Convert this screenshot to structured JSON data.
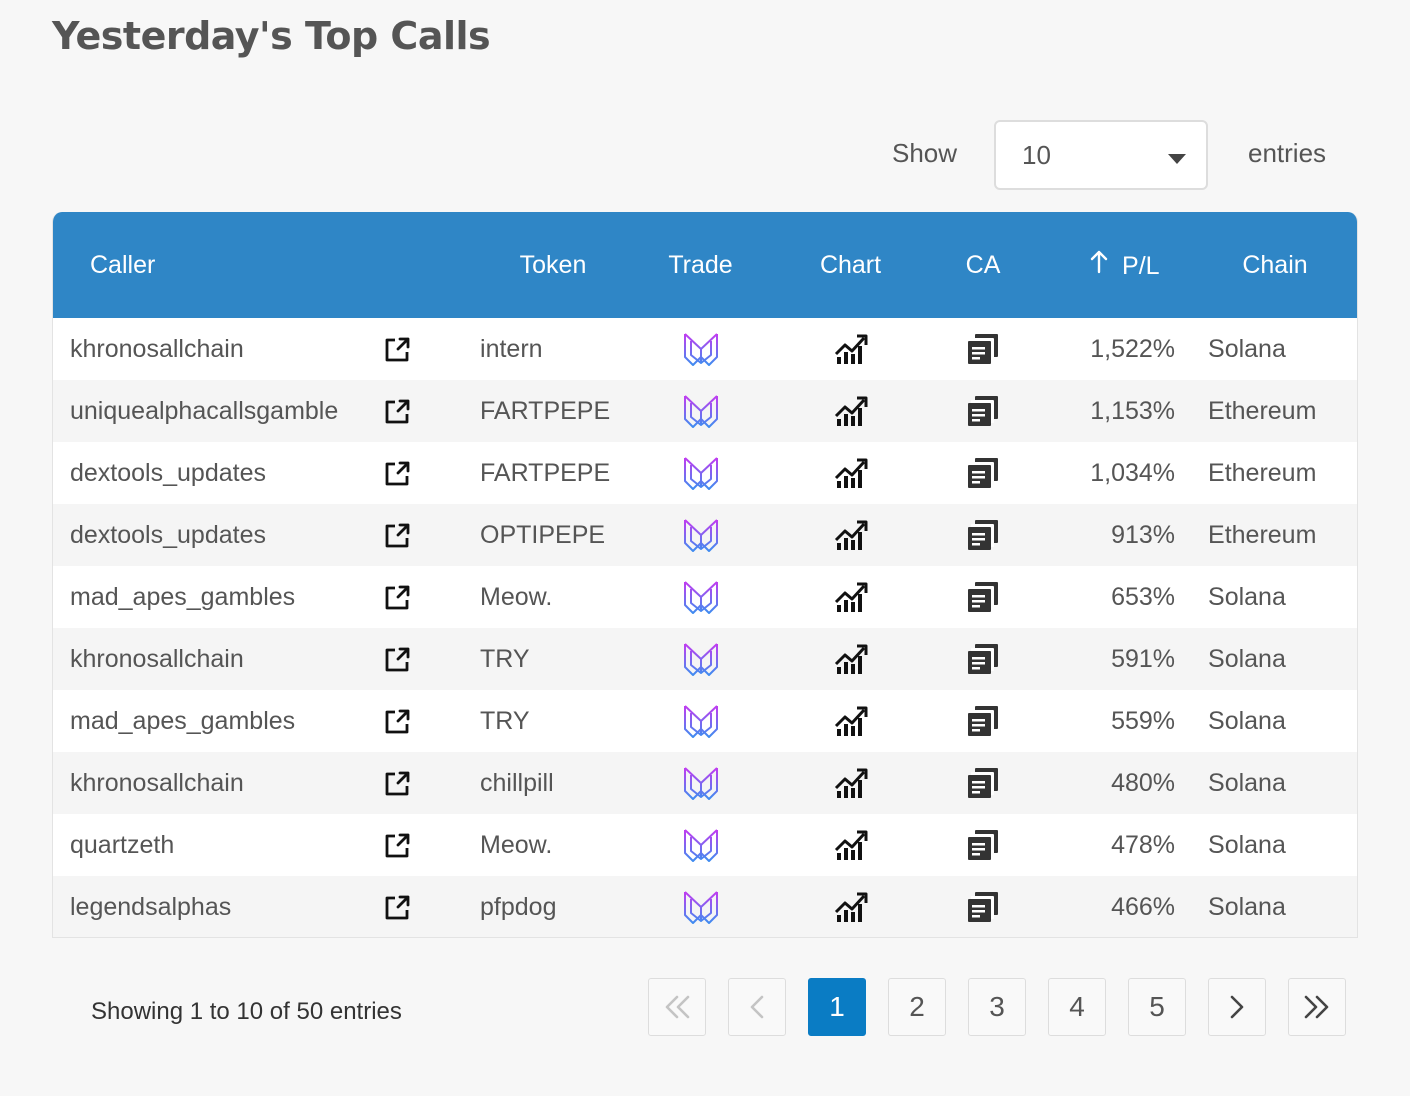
{
  "page": {
    "title": "Yesterday's Top Calls"
  },
  "length_control": {
    "show_label": "Show",
    "selected": "10",
    "entries_label": "entries"
  },
  "table": {
    "columns": {
      "caller": "Caller",
      "token": "Token",
      "trade": "Trade",
      "chart": "Chart",
      "ca": "CA",
      "pl": "P/L",
      "chain": "Chain"
    },
    "sort": {
      "column": "P/L",
      "direction": "ascending-arrow"
    },
    "icons": {
      "caller_link": "external-link-icon",
      "trade": "trade-logo-icon",
      "chart": "chart-growth-icon",
      "ca": "copy-document-icon"
    },
    "rows": [
      {
        "caller": "khronosallchain",
        "token": "intern",
        "pl": "1,522%",
        "chain": "Solana"
      },
      {
        "caller": "uniquealphacallsgamble",
        "token": "FARTPEPE",
        "pl": "1,153%",
        "chain": "Ethereum"
      },
      {
        "caller": "dextools_updates",
        "token": "FARTPEPE",
        "pl": "1,034%",
        "chain": "Ethereum"
      },
      {
        "caller": "dextools_updates",
        "token": "OPTIPEPE",
        "pl": "913%",
        "chain": "Ethereum"
      },
      {
        "caller": "mad_apes_gambles",
        "token": "Meow.",
        "pl": "653%",
        "chain": "Solana"
      },
      {
        "caller": "khronosallchain",
        "token": "TRY",
        "pl": "591%",
        "chain": "Solana"
      },
      {
        "caller": "mad_apes_gambles",
        "token": "TRY",
        "pl": "559%",
        "chain": "Solana"
      },
      {
        "caller": "khronosallchain",
        "token": "chillpill",
        "pl": "480%",
        "chain": "Solana"
      },
      {
        "caller": "quartzeth",
        "token": "Meow.",
        "pl": "478%",
        "chain": "Solana"
      },
      {
        "caller": "legendsalphas",
        "token": "pfpdog",
        "pl": "466%",
        "chain": "Solana"
      }
    ]
  },
  "footer": {
    "info": "Showing 1 to 10 of 50 entries",
    "pages": [
      "1",
      "2",
      "3",
      "4",
      "5"
    ],
    "current_page": "1"
  },
  "colors": {
    "header_bg": "#2f86c6",
    "active_page": "#0a7cc4",
    "trade_icon_gradient": [
      "#c13cf0",
      "#3f8cf0"
    ]
  }
}
